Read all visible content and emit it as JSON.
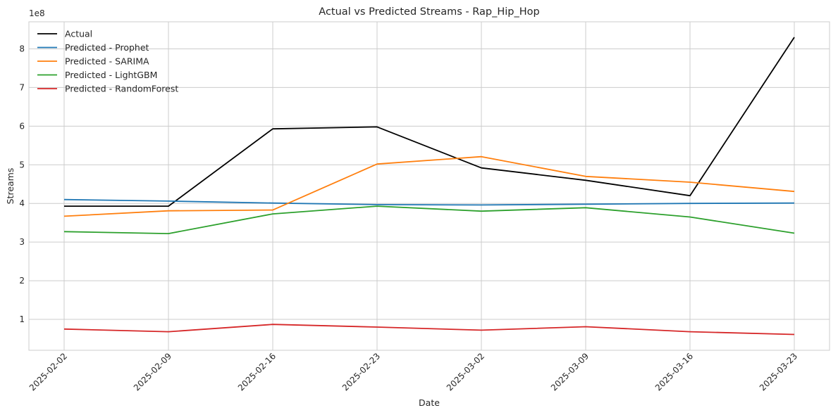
{
  "chart_data": {
    "type": "line",
    "title": "Actual vs Predicted Streams - Rap_Hip_Hop",
    "xlabel": "Date",
    "ylabel": "Streams",
    "y_offset_label": "1e8",
    "x": [
      "2025-02-02",
      "2025-02-09",
      "2025-02-16",
      "2025-02-23",
      "2025-03-02",
      "2025-03-09",
      "2025-03-16",
      "2025-03-23"
    ],
    "yticks": [
      100000000,
      200000000,
      300000000,
      400000000,
      500000000,
      600000000,
      700000000,
      800000000
    ],
    "ytick_labels": [
      "1",
      "2",
      "3",
      "4",
      "5",
      "6",
      "7",
      "8"
    ],
    "ylim": [
      20000000,
      870000000
    ],
    "grid": true,
    "legend_position": "top-left",
    "series": [
      {
        "name": "Actual",
        "color": "#000000",
        "values": [
          393000000,
          393000000,
          593000000,
          598000000,
          492000000,
          460000000,
          420000000,
          830000000
        ]
      },
      {
        "name": "Predicted - Prophet",
        "color": "#1f77b4",
        "values": [
          410000000,
          406000000,
          401000000,
          397000000,
          396000000,
          398000000,
          400000000,
          401000000
        ]
      },
      {
        "name": "Predicted - SARIMA",
        "color": "#ff7f0e",
        "values": [
          367000000,
          381000000,
          383000000,
          502000000,
          521000000,
          470000000,
          455000000,
          431000000
        ]
      },
      {
        "name": "Predicted - LightGBM",
        "color": "#2ca02c",
        "values": [
          327000000,
          322000000,
          373000000,
          393000000,
          380000000,
          389000000,
          365000000,
          323000000
        ]
      },
      {
        "name": "Predicted - RandomForest",
        "color": "#d62728",
        "values": [
          75000000,
          68000000,
          87000000,
          80000000,
          72000000,
          81000000,
          68000000,
          61000000
        ]
      }
    ]
  }
}
